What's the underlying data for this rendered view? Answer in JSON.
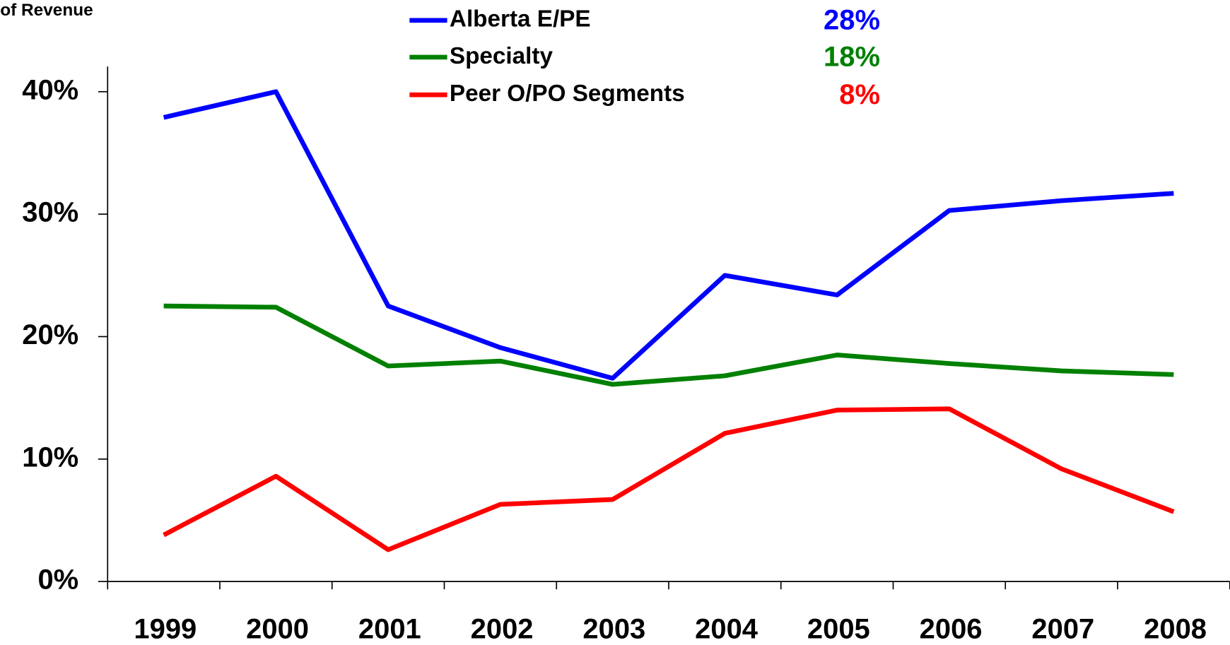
{
  "chart_data": {
    "type": "line",
    "y_label": "of Revenue",
    "categories": [
      "1999",
      "2000",
      "2001",
      "2002",
      "2003",
      "2004",
      "2005",
      "2006",
      "2007",
      "2008"
    ],
    "series": [
      {
        "name": "Alberta E/PE",
        "color": "#0000ff",
        "annotation": "28%",
        "values": [
          37.9,
          40.0,
          22.5,
          19.1,
          16.6,
          25.0,
          23.4,
          30.3,
          31.1,
          31.7
        ]
      },
      {
        "name": "Specialty",
        "color": "#008000",
        "annotation": "18%",
        "values": [
          22.5,
          22.4,
          17.6,
          18.0,
          16.1,
          16.8,
          18.5,
          17.8,
          17.2,
          16.9
        ]
      },
      {
        "name": "Peer O/PO Segments",
        "color": "#ff0000",
        "annotation": "8%",
        "values": [
          3.8,
          8.6,
          2.6,
          6.3,
          6.7,
          12.1,
          14.0,
          14.1,
          9.2,
          5.7
        ]
      }
    ],
    "ylim": [
      0,
      40
    ],
    "yticks": [
      {
        "value": 0,
        "label": "0%"
      },
      {
        "value": 10,
        "label": "10%"
      },
      {
        "value": 20,
        "label": "20%"
      },
      {
        "value": 30,
        "label": "30%"
      },
      {
        "value": 40,
        "label": "40%"
      }
    ],
    "grid": false
  }
}
